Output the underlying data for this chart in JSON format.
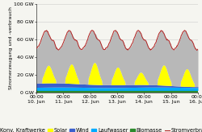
{
  "ylabel": "Stromerzeugung und -verbrauch",
  "ylim": [
    0,
    100
  ],
  "yticks": [
    0,
    20,
    40,
    60,
    80,
    100
  ],
  "ytick_labels": [
    "0 GW",
    "20 GW",
    "40 GW",
    "60 GW",
    "80 GW",
    "100 GW"
  ],
  "xtick_labels": [
    "00:00\n10. Jun",
    "00:00\n11. Jun",
    "00:00\n12. Jun",
    "00:00\n13. Jun",
    "00:00\n14. Jun",
    "00:00\n15. Jun",
    "00:00\n16. Jun"
  ],
  "n_points": 337,
  "konv_color": "#b8b8b8",
  "solar_color": "#ffff00",
  "wind_color": "#3a5fcd",
  "laufwasser_color": "#00aaff",
  "biomasse_color": "#2d8a2d",
  "verbrauch_color": "#b22222",
  "bg_color": "#f5f5f0",
  "grid_color": "#cccccc",
  "legend_fontsize": 4.8,
  "tick_fontsize": 4.5,
  "ylabel_fontsize": 4.5
}
